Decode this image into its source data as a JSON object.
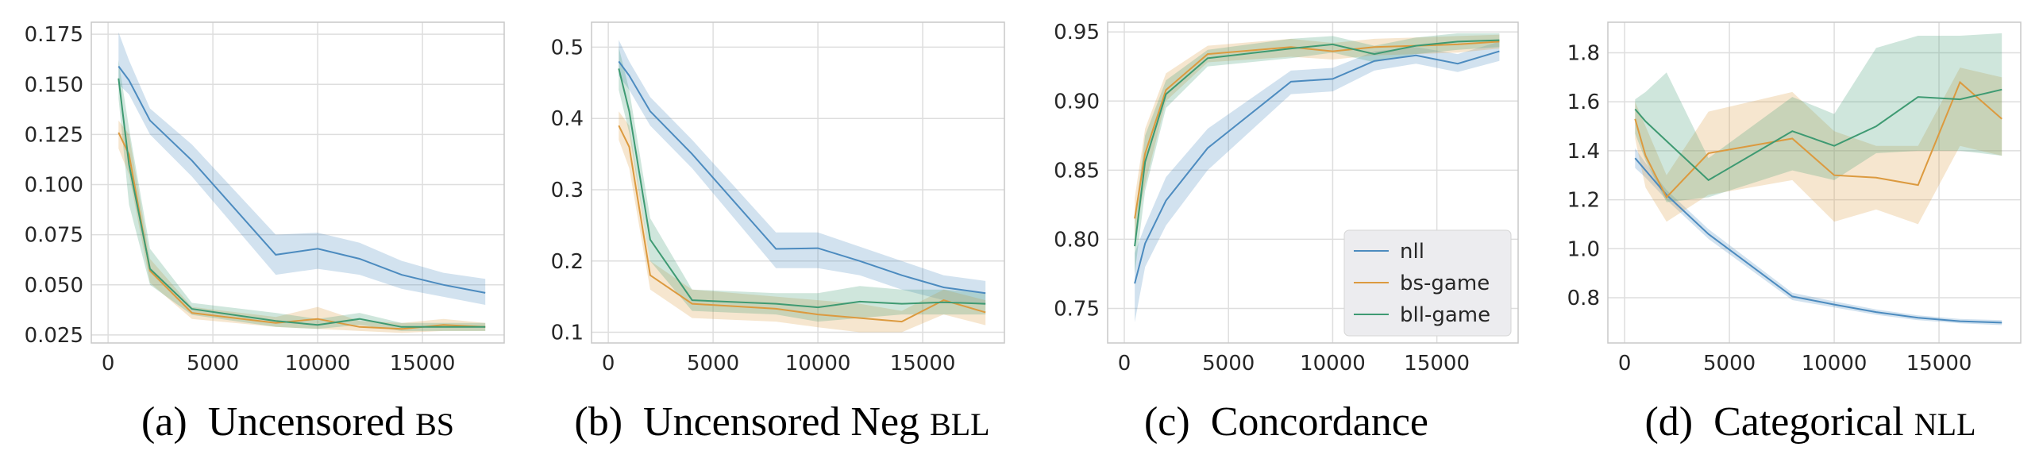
{
  "colors": {
    "nll": "#4c8bbf",
    "bs-game": "#dc9a3f",
    "bll-game": "#3e9a72",
    "grid": "#dedede",
    "axis": "#c8c8c8"
  },
  "legend_items": [
    "nll",
    "bs-game",
    "bll-game"
  ],
  "chart_data": [
    {
      "type": "line",
      "caption": {
        "label": "(a)",
        "text": "Uncensored ",
        "smallcaps": "BS"
      },
      "xlim": [
        -800,
        18900
      ],
      "ylim": [
        0.021,
        0.181
      ],
      "xticks": [
        0,
        5000,
        10000,
        15000
      ],
      "xtick_labels": [
        "0",
        "5000",
        "10000",
        "15000"
      ],
      "yticks": [
        0.025,
        0.05,
        0.075,
        0.1,
        0.125,
        0.15,
        0.175
      ],
      "ytick_labels": [
        "0.025",
        "0.050",
        "0.075",
        "0.100",
        "0.125",
        "0.150",
        "0.175"
      ],
      "legend": false,
      "series": [
        {
          "name": "nll",
          "x": [
            500,
            1000,
            2000,
            4000,
            8000,
            10000,
            12000,
            14000,
            16000,
            18000
          ],
          "y": [
            0.159,
            0.152,
            0.132,
            0.112,
            0.065,
            0.068,
            0.063,
            0.055,
            0.05,
            0.046
          ],
          "lo": [
            0.15,
            0.145,
            0.125,
            0.104,
            0.055,
            0.058,
            0.055,
            0.048,
            0.044,
            0.04
          ],
          "hi": [
            0.176,
            0.162,
            0.138,
            0.12,
            0.075,
            0.076,
            0.071,
            0.062,
            0.056,
            0.053
          ]
        },
        {
          "name": "bs-game",
          "x": [
            500,
            1000,
            2000,
            4000,
            8000,
            10000,
            12000,
            14000,
            16000,
            18000
          ],
          "y": [
            0.126,
            0.115,
            0.057,
            0.036,
            0.031,
            0.033,
            0.029,
            0.028,
            0.03,
            0.029
          ],
          "lo": [
            0.118,
            0.105,
            0.051,
            0.033,
            0.029,
            0.028,
            0.027,
            0.026,
            0.027,
            0.027
          ],
          "hi": [
            0.132,
            0.125,
            0.063,
            0.039,
            0.034,
            0.039,
            0.032,
            0.031,
            0.033,
            0.031
          ]
        },
        {
          "name": "bll-game",
          "x": [
            500,
            1000,
            2000,
            4000,
            8000,
            10000,
            12000,
            14000,
            16000,
            18000
          ],
          "y": [
            0.153,
            0.11,
            0.058,
            0.038,
            0.032,
            0.03,
            0.033,
            0.029,
            0.029,
            0.029
          ],
          "lo": [
            0.143,
            0.09,
            0.05,
            0.035,
            0.029,
            0.028,
            0.03,
            0.027,
            0.027,
            0.027
          ],
          "hi": [
            0.162,
            0.128,
            0.068,
            0.041,
            0.036,
            0.033,
            0.036,
            0.031,
            0.031,
            0.031
          ]
        }
      ]
    },
    {
      "type": "line",
      "caption": {
        "label": "(b)",
        "text": "Uncensored Neg ",
        "smallcaps": "BLL"
      },
      "xlim": [
        -800,
        18900
      ],
      "ylim": [
        0.085,
        0.535
      ],
      "xticks": [
        0,
        5000,
        10000,
        15000
      ],
      "xtick_labels": [
        "0",
        "5000",
        "10000",
        "15000"
      ],
      "yticks": [
        0.1,
        0.2,
        0.3,
        0.4,
        0.5
      ],
      "ytick_labels": [
        "0.1",
        "0.2",
        "0.3",
        "0.4",
        "0.5"
      ],
      "legend": false,
      "series": [
        {
          "name": "nll",
          "x": [
            500,
            1000,
            2000,
            4000,
            8000,
            10000,
            12000,
            14000,
            16000,
            18000
          ],
          "y": [
            0.48,
            0.46,
            0.41,
            0.35,
            0.217,
            0.218,
            0.2,
            0.18,
            0.163,
            0.155
          ],
          "lo": [
            0.46,
            0.44,
            0.39,
            0.33,
            0.19,
            0.19,
            0.18,
            0.16,
            0.145,
            0.138
          ],
          "hi": [
            0.51,
            0.48,
            0.43,
            0.37,
            0.24,
            0.24,
            0.22,
            0.2,
            0.18,
            0.172
          ]
        },
        {
          "name": "bs-game",
          "x": [
            500,
            1000,
            2000,
            4000,
            8000,
            10000,
            12000,
            14000,
            16000,
            18000
          ],
          "y": [
            0.39,
            0.36,
            0.18,
            0.14,
            0.133,
            0.125,
            0.12,
            0.115,
            0.145,
            0.128
          ],
          "lo": [
            0.37,
            0.33,
            0.16,
            0.12,
            0.115,
            0.107,
            0.1,
            0.1,
            0.125,
            0.11
          ],
          "hi": [
            0.41,
            0.39,
            0.2,
            0.16,
            0.15,
            0.145,
            0.14,
            0.13,
            0.16,
            0.145
          ]
        },
        {
          "name": "bll-game",
          "x": [
            500,
            1000,
            2000,
            4000,
            8000,
            10000,
            12000,
            14000,
            16000,
            18000
          ],
          "y": [
            0.47,
            0.41,
            0.23,
            0.145,
            0.14,
            0.135,
            0.143,
            0.14,
            0.142,
            0.14
          ],
          "lo": [
            0.44,
            0.38,
            0.2,
            0.13,
            0.125,
            0.115,
            0.12,
            0.125,
            0.125,
            0.125
          ],
          "hi": [
            0.5,
            0.44,
            0.26,
            0.16,
            0.155,
            0.155,
            0.165,
            0.16,
            0.16,
            0.155
          ]
        }
      ]
    },
    {
      "type": "line",
      "caption": {
        "label": "(c)",
        "text": "Concordance",
        "smallcaps": ""
      },
      "xlim": [
        -800,
        18900
      ],
      "ylim": [
        0.725,
        0.957
      ],
      "xticks": [
        0,
        5000,
        10000,
        15000
      ],
      "xtick_labels": [
        "0",
        "5000",
        "10000",
        "15000"
      ],
      "yticks": [
        0.75,
        0.8,
        0.85,
        0.9,
        0.95
      ],
      "ytick_labels": [
        "0.75",
        "0.80",
        "0.85",
        "0.90",
        "0.95"
      ],
      "legend": true,
      "series": [
        {
          "name": "nll",
          "x": [
            500,
            1000,
            2000,
            4000,
            8000,
            10000,
            12000,
            14000,
            16000,
            18000
          ],
          "y": [
            0.768,
            0.797,
            0.828,
            0.866,
            0.914,
            0.916,
            0.929,
            0.933,
            0.927,
            0.936
          ],
          "lo": [
            0.74,
            0.78,
            0.81,
            0.85,
            0.905,
            0.907,
            0.922,
            0.927,
            0.921,
            0.929
          ],
          "hi": [
            0.79,
            0.81,
            0.845,
            0.88,
            0.922,
            0.924,
            0.936,
            0.939,
            0.934,
            0.943
          ]
        },
        {
          "name": "bs-game",
          "x": [
            500,
            1000,
            2000,
            4000,
            8000,
            10000,
            12000,
            14000,
            16000,
            18000
          ],
          "y": [
            0.815,
            0.862,
            0.908,
            0.934,
            0.939,
            0.936,
            0.939,
            0.94,
            0.941,
            0.943
          ],
          "lo": [
            0.8,
            0.84,
            0.9,
            0.928,
            0.932,
            0.93,
            0.933,
            0.934,
            0.935,
            0.938
          ],
          "hi": [
            0.83,
            0.88,
            0.92,
            0.94,
            0.945,
            0.942,
            0.945,
            0.946,
            0.947,
            0.948
          ]
        },
        {
          "name": "bll-game",
          "x": [
            500,
            1000,
            2000,
            4000,
            8000,
            10000,
            12000,
            14000,
            16000,
            18000
          ],
          "y": [
            0.795,
            0.856,
            0.905,
            0.931,
            0.938,
            0.941,
            0.934,
            0.94,
            0.943,
            0.944
          ],
          "lo": [
            0.775,
            0.835,
            0.895,
            0.925,
            0.931,
            0.935,
            0.928,
            0.934,
            0.937,
            0.939
          ],
          "hi": [
            0.815,
            0.875,
            0.915,
            0.937,
            0.945,
            0.947,
            0.94,
            0.946,
            0.949,
            0.949
          ]
        }
      ]
    },
    {
      "type": "line",
      "caption": {
        "label": "(d)",
        "text": "Categorical ",
        "smallcaps": "NLL"
      },
      "xlim": [
        -800,
        18900
      ],
      "ylim": [
        0.615,
        1.925
      ],
      "xticks": [
        0,
        5000,
        10000,
        15000
      ],
      "xtick_labels": [
        "0",
        "5000",
        "10000",
        "15000"
      ],
      "yticks": [
        0.8,
        1.0,
        1.2,
        1.4,
        1.6,
        1.8
      ],
      "ytick_labels": [
        "0.8",
        "1.0",
        "1.2",
        "1.4",
        "1.6",
        "1.8"
      ],
      "legend": false,
      "series": [
        {
          "name": "nll",
          "x": [
            500,
            1000,
            2000,
            4000,
            8000,
            10000,
            12000,
            14000,
            16000,
            18000
          ],
          "y": [
            1.37,
            1.32,
            1.22,
            1.06,
            0.805,
            0.772,
            0.741,
            0.718,
            0.704,
            0.698
          ],
          "lo": [
            1.33,
            1.29,
            1.2,
            1.04,
            0.79,
            0.76,
            0.73,
            0.708,
            0.695,
            0.688
          ],
          "hi": [
            1.41,
            1.35,
            1.24,
            1.08,
            0.82,
            0.785,
            0.752,
            0.728,
            0.713,
            0.708
          ]
        },
        {
          "name": "bs-game",
          "x": [
            500,
            1000,
            2000,
            4000,
            8000,
            10000,
            12000,
            14000,
            16000,
            18000
          ],
          "y": [
            1.53,
            1.38,
            1.21,
            1.39,
            1.45,
            1.3,
            1.29,
            1.26,
            1.68,
            1.53
          ],
          "lo": [
            1.45,
            1.25,
            1.11,
            1.22,
            1.28,
            1.11,
            1.16,
            1.1,
            1.42,
            1.38
          ],
          "hi": [
            1.6,
            1.5,
            1.3,
            1.56,
            1.64,
            1.48,
            1.42,
            1.42,
            1.74,
            1.7
          ]
        },
        {
          "name": "bll-game",
          "x": [
            500,
            1000,
            2000,
            4000,
            8000,
            10000,
            12000,
            14000,
            16000,
            18000
          ],
          "y": [
            1.57,
            1.52,
            1.44,
            1.28,
            1.48,
            1.42,
            1.5,
            1.62,
            1.61,
            1.65
          ],
          "lo": [
            1.47,
            1.36,
            1.19,
            1.21,
            1.32,
            1.28,
            1.39,
            1.4,
            1.4,
            1.38
          ],
          "hi": [
            1.61,
            1.64,
            1.72,
            1.37,
            1.62,
            1.55,
            1.82,
            1.87,
            1.87,
            1.88
          ]
        }
      ]
    }
  ]
}
